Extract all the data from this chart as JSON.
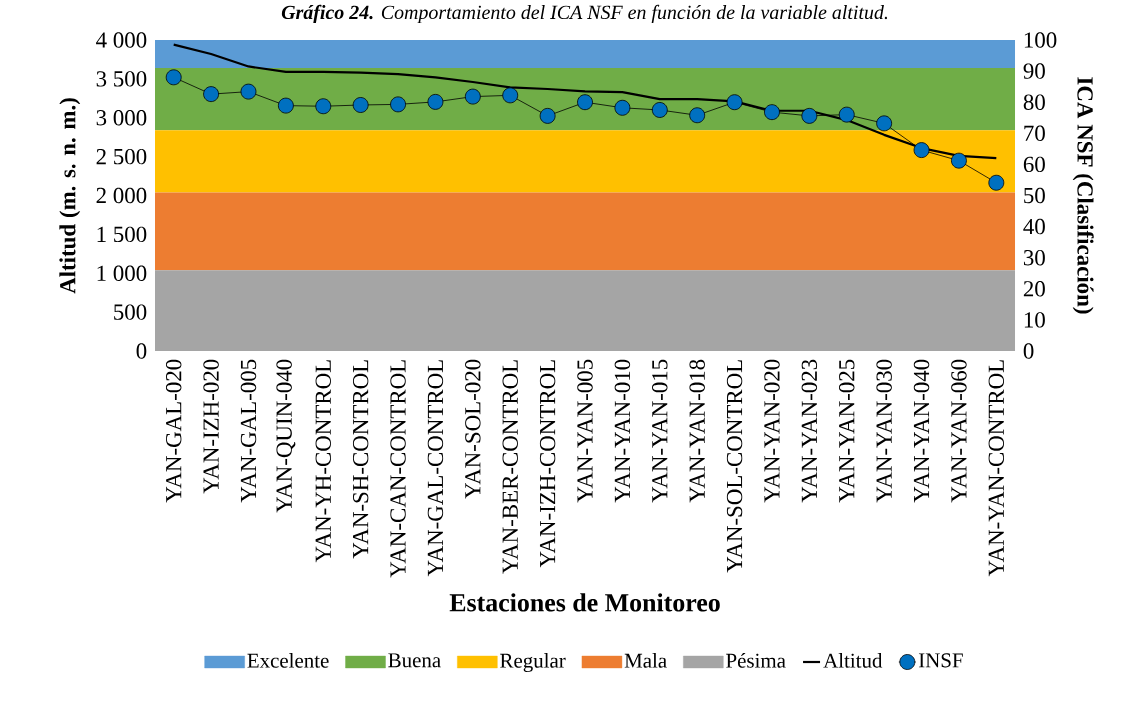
{
  "chart_data": {
    "type": "line",
    "title": "**Gráfico 24.** Comportamiento del ICA NSF en función de la variable altitud.",
    "xlabel": "Estaciones de Monitoreo",
    "ylabel": "Altitud (m. s. n. m.)",
    "y2label": "ICA NSF (Clasificación)",
    "categories": [
      "YAN-GAL-020",
      "YAN-IZH-020",
      "YAN-GAL-005",
      "YAN-QUIN-040",
      "YAN-YH-CONTROL",
      "YAN-SH-CONTROL",
      "YAN-CAN-CONTROL",
      "YAN-GAL-CONTROL",
      "YAN-SOL-020",
      "YAN-BER-CONTROL",
      "YAN-IZH-CONTROL",
      "YAN-YAN-005",
      "YAN-YAN-010",
      "YAN-YAN-015",
      "YAN-YAN-018",
      "YAN-SOL-CONTROL",
      "YAN-YAN-020",
      "YAN-YAN-023",
      "YAN-YAN-025",
      "YAN-YAN-030",
      "YAN-YAN-040",
      "YAN-YAN-060",
      "YAN-YAN-CONTROL"
    ],
    "series": [
      {
        "name": "Altitud",
        "color": "#000000",
        "values": [
          3940,
          3820,
          3660,
          3590,
          3590,
          3580,
          3560,
          3520,
          3460,
          3390,
          3370,
          3340,
          3330,
          3240,
          3240,
          3210,
          3090,
          3090,
          2970,
          2780,
          2610,
          2510,
          2480
        ]
      },
      {
        "name": "INSF",
        "color": "#0070c0",
        "axis": "y2",
        "marker": "circle",
        "values": [
          88.0,
          82.6,
          83.4,
          78.9,
          78.7,
          79.1,
          79.3,
          80.1,
          81.8,
          82.2,
          75.6,
          80.0,
          78.2,
          77.5,
          75.8,
          80.0,
          76.8,
          75.6,
          76.0,
          73.2,
          64.6,
          61.2,
          54.1
        ]
      }
    ],
    "ylim": [
      0,
      4000
    ],
    "yticks": [
      0,
      500,
      {
        "value": 1000,
        "label": "1 000"
      },
      {
        "value": 1500,
        "label": "1 500"
      },
      {
        "value": 2000,
        "label": "2 000"
      },
      {
        "value": 2500,
        "label": "2 500"
      },
      {
        "value": 3000,
        "label": "3 000"
      },
      {
        "value": 3500,
        "label": "3 500"
      },
      {
        "value": 4000,
        "label": "4 000"
      }
    ],
    "y2lim": [
      0,
      100
    ],
    "y2ticks": [
      0,
      10,
      20,
      30,
      40,
      50,
      60,
      70,
      80,
      90,
      100
    ],
    "bands": [
      {
        "axis": "y2",
        "from": 91,
        "to": 100,
        "label": "Excelente",
        "color": "#5b9bd5"
      },
      {
        "axis": "y2",
        "from": 71,
        "to": 91,
        "label": "Buena",
        "color": "#70ad47"
      },
      {
        "axis": "y2",
        "from": 51,
        "to": 71,
        "label": "Regular",
        "color": "#ffc000"
      },
      {
        "axis": "y2",
        "from": 26,
        "to": 51,
        "label": "Mala",
        "color": "#ed7d31"
      },
      {
        "axis": "y2",
        "from": 0,
        "to": 26,
        "label": "Pésima",
        "color": "#a5a5a5"
      }
    ],
    "legend": "bottom"
  }
}
